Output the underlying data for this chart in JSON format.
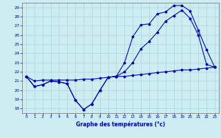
{
  "title": "Graphe des températures (°c)",
  "bg_color": "#cceef2",
  "grid_color": "#aad4da",
  "line_color": "#0000bb",
  "xlim": [
    -0.5,
    23.5
  ],
  "ylim": [
    17.5,
    29.5
  ],
  "xticks": [
    0,
    1,
    2,
    3,
    4,
    5,
    6,
    7,
    8,
    9,
    10,
    11,
    12,
    13,
    14,
    15,
    16,
    17,
    18,
    19,
    20,
    21,
    22,
    23
  ],
  "yticks": [
    18,
    19,
    20,
    21,
    22,
    23,
    24,
    25,
    26,
    27,
    28,
    29
  ],
  "line1_x": [
    0,
    1,
    2,
    3,
    4,
    5,
    6,
    7,
    8,
    9,
    10,
    11,
    12,
    13,
    14,
    15,
    16,
    17,
    18,
    19,
    20,
    21,
    22,
    23
  ],
  "line1_y": [
    21.5,
    20.4,
    20.6,
    21.0,
    20.9,
    20.7,
    18.9,
    17.9,
    18.5,
    20.0,
    21.4,
    21.5,
    23.0,
    25.8,
    27.1,
    27.2,
    28.3,
    28.5,
    29.2,
    29.2,
    28.6,
    26.5,
    24.4,
    22.5
  ],
  "line2_x": [
    0,
    1,
    2,
    3,
    4,
    5,
    6,
    7,
    8,
    9,
    10,
    11,
    12,
    13,
    14,
    15,
    16,
    17,
    18,
    19,
    20,
    21,
    22,
    23
  ],
  "line2_y": [
    21.5,
    20.4,
    20.6,
    21.0,
    20.9,
    20.7,
    18.9,
    17.9,
    18.5,
    20.0,
    21.4,
    21.5,
    22.0,
    23.0,
    24.5,
    25.3,
    26.3,
    27.5,
    28.1,
    28.7,
    27.8,
    26.0,
    22.8,
    22.5
  ],
  "line3_x": [
    0,
    1,
    2,
    3,
    4,
    5,
    6,
    7,
    8,
    9,
    10,
    11,
    12,
    13,
    14,
    15,
    16,
    17,
    18,
    19,
    20,
    21,
    22,
    23
  ],
  "line3_y": [
    21.5,
    21.0,
    21.1,
    21.1,
    21.1,
    21.1,
    21.1,
    21.2,
    21.2,
    21.3,
    21.4,
    21.5,
    21.5,
    21.6,
    21.7,
    21.8,
    21.9,
    22.0,
    22.1,
    22.2,
    22.2,
    22.3,
    22.4,
    22.5
  ]
}
